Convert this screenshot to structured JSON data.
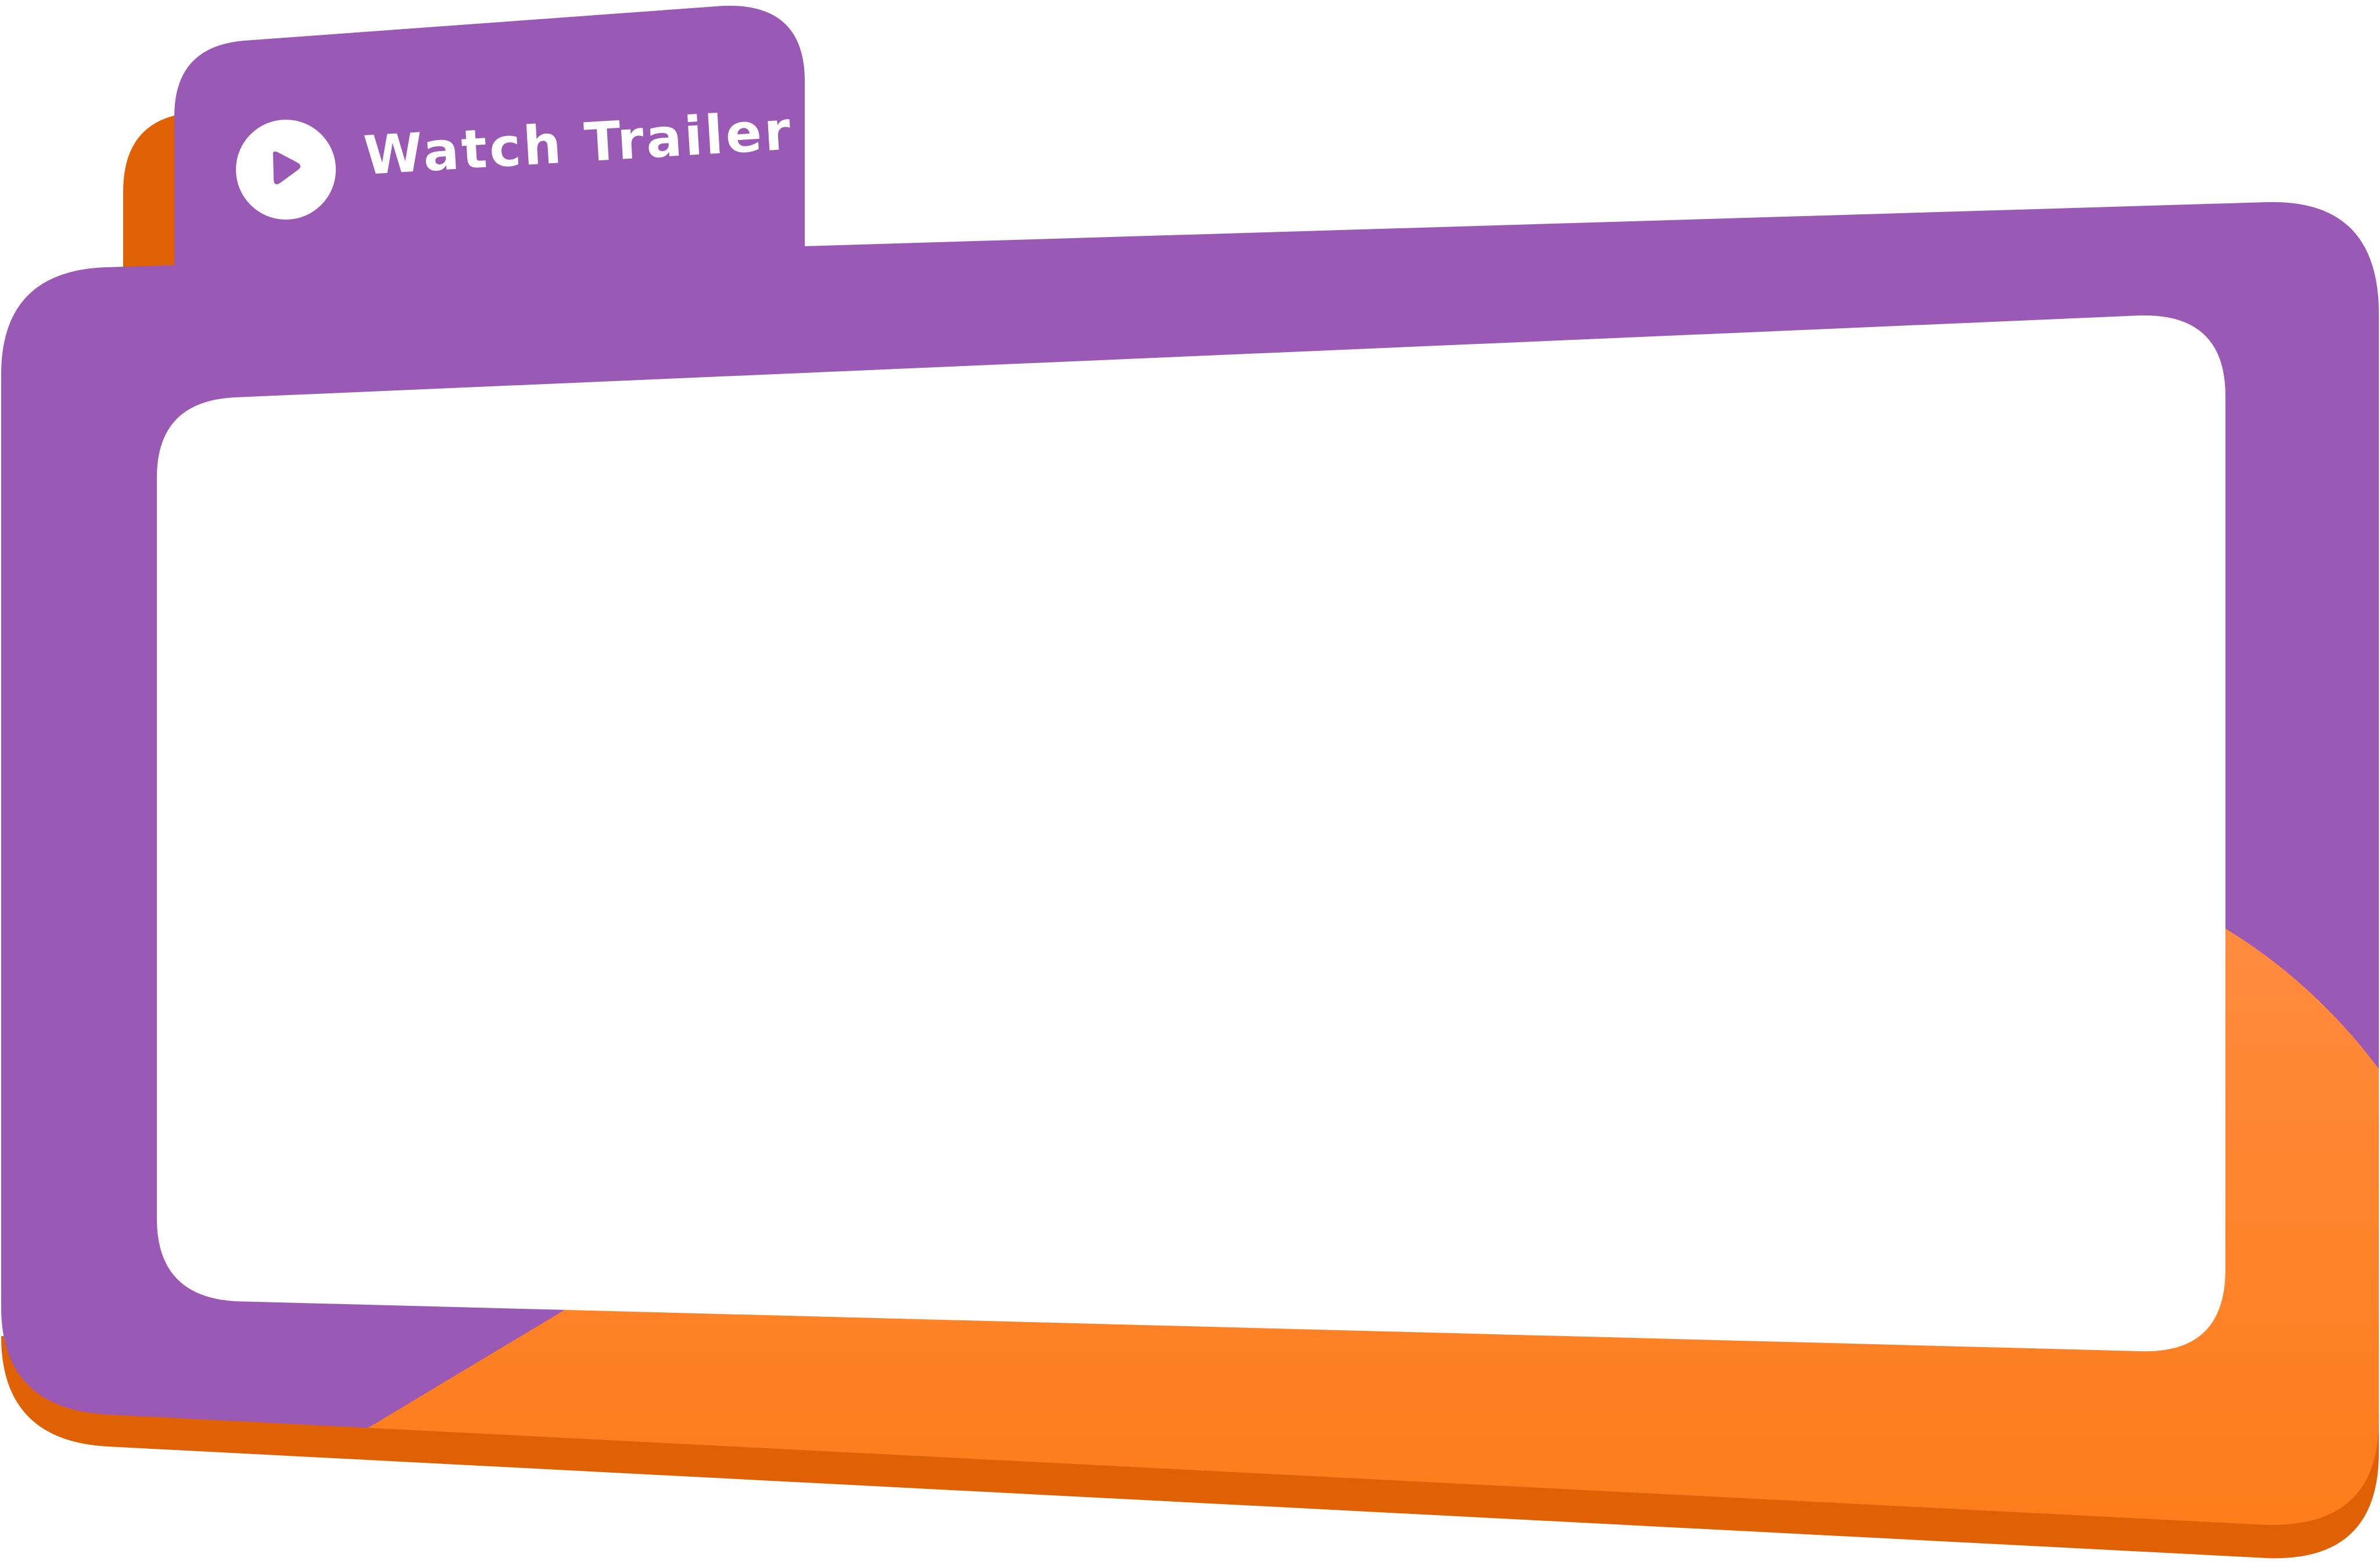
{
  "trailer_tab": {
    "label": "Watch Trailer",
    "icon": "play-icon"
  },
  "video_frame": {
    "state": "empty"
  },
  "colors": {
    "purple": "#9A59B4",
    "orange": "#FE7B17",
    "orange_light": "#FF8E45",
    "orange_shadow": "#DF6104",
    "screen": "#FFFFFF",
    "icon_glyph": "#9A59B4"
  }
}
